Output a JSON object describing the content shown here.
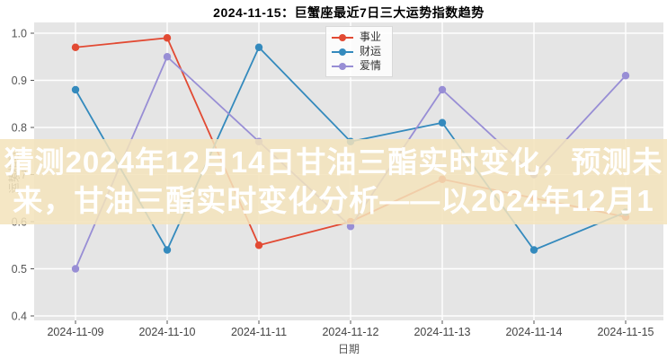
{
  "figure": {
    "background": "#ffffff"
  },
  "overlay": {
    "line1": "猜测2024年12月14日甘油三酯实时变化，预测未",
    "line2": "来，甘油三酯实时变化分析——以2024年12月1",
    "background": "#F3E3BC",
    "text_color": "#FFFFFF"
  },
  "chart_data": {
    "type": "line",
    "title": "2024-11-15：巨蟹座最近7日三大运势指数趋势",
    "xlabel": "日期",
    "ylabel": "运势指数",
    "categories": [
      "2024-11-09",
      "2024-11-10",
      "2024-11-11",
      "2024-11-12",
      "2024-11-13",
      "2024-11-14",
      "2024-11-15"
    ],
    "series": [
      {
        "name": "事业",
        "color": "#E24A33",
        "values": [
          0.97,
          0.99,
          0.55,
          0.6,
          0.69,
          0.65,
          0.61
        ]
      },
      {
        "name": "财运",
        "color": "#348ABD",
        "values": [
          0.88,
          0.54,
          0.97,
          0.77,
          0.81,
          0.54,
          0.62
        ]
      },
      {
        "name": "爱情",
        "color": "#988ED5",
        "values": [
          0.5,
          0.95,
          0.77,
          0.59,
          0.88,
          0.7,
          0.91
        ]
      }
    ],
    "ylim": [
      0.4,
      1.0
    ],
    "yticks": [
      0.4,
      0.5,
      0.6,
      0.7,
      0.8,
      0.9,
      1.0
    ],
    "grid": true,
    "legend_position": "upper-center",
    "plot_background": "#E5E5E5",
    "grid_color": "#FFFFFF",
    "tick_color": "#555555"
  }
}
